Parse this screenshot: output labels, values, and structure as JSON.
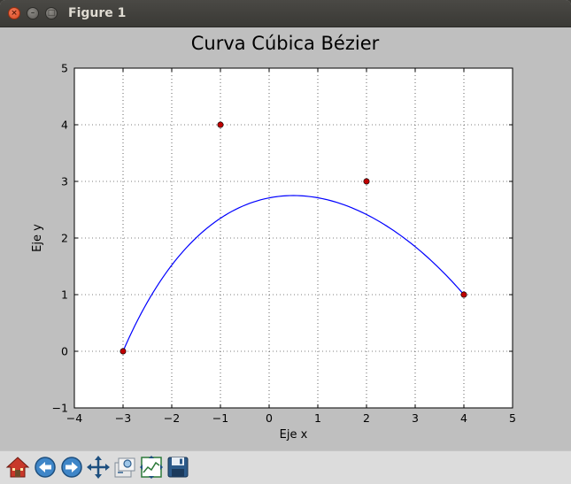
{
  "window": {
    "title": "Figure 1"
  },
  "titlebar_buttons": {
    "close": "×",
    "minimize": "–",
    "maximize": "□"
  },
  "toolbar": {
    "icons": [
      "home-icon",
      "back-icon",
      "forward-icon",
      "pan-icon",
      "zoom-icon",
      "configure-subplots-icon",
      "save-icon"
    ]
  },
  "colors": {
    "curve": "#0000ff",
    "points": "#c00000",
    "figure_bg": "#bfbfbf",
    "axes_bg": "#ffffff"
  },
  "chart_data": {
    "type": "line",
    "title": "Curva Cúbica Bézier",
    "xlabel": "Eje x",
    "ylabel": "Eje y",
    "xlim": [
      -4,
      5
    ],
    "ylim": [
      -1,
      5
    ],
    "xticks": [
      -4,
      -3,
      -2,
      -1,
      0,
      1,
      2,
      3,
      4,
      5
    ],
    "yticks": [
      -1,
      0,
      1,
      2,
      3,
      4,
      5
    ],
    "xtick_labels": [
      "−4",
      "−3",
      "−2",
      "−1",
      "0",
      "1",
      "2",
      "3",
      "4",
      "5"
    ],
    "ytick_labels": [
      "−1",
      "0",
      "1",
      "2",
      "3",
      "4",
      "5"
    ],
    "grid": true,
    "control_points": [
      {
        "x": -3,
        "y": 0
      },
      {
        "x": -1,
        "y": 4
      },
      {
        "x": 2,
        "y": 3
      },
      {
        "x": 4,
        "y": 1
      }
    ],
    "series": [
      {
        "kind": "bezier-curve",
        "color": "#0000ff",
        "from_control_points": true
      }
    ]
  }
}
